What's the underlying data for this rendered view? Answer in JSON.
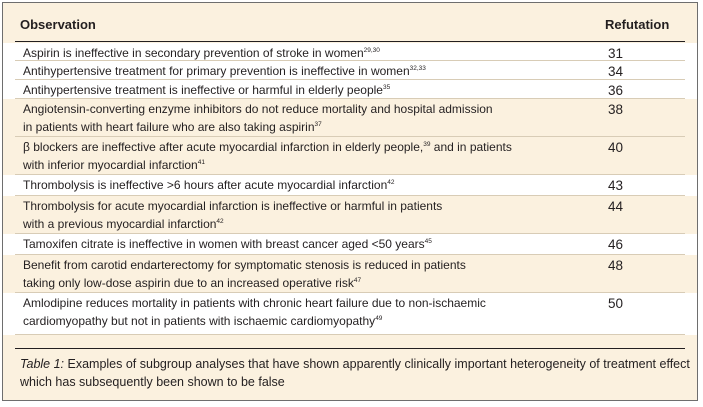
{
  "table": {
    "headers": {
      "observation": "Observation",
      "refutation": "Refutation"
    },
    "rows": [
      {
        "text": "Aspirin is ineffective in secondary prevention of stroke in women",
        "refs": "29,30",
        "refutation": "31"
      },
      {
        "text": "Antihypertensive treatment for primary prevention is ineffective in women",
        "refs": "32,33",
        "refutation": "34"
      },
      {
        "text": "Antihypertensive treatment is ineffective or harmful in elderly people",
        "refs": "35",
        "refutation": "36"
      },
      {
        "text": "Angiotensin-converting enzyme inhibitors do not reduce mortality and hospital admission",
        "text2": " in patients with heart failure who are also taking aspirin",
        "refs": "37",
        "refutation": "38"
      },
      {
        "text": "β blockers are ineffective after acute myocardial infarction in elderly people,",
        "refs": "39",
        "text2": " and in patients",
        "text3": "with inferior myocardial infarction",
        "refs2": "41",
        "refutation": "40"
      },
      {
        "text": "Thrombolysis is ineffective >6 hours after acute myocardial infarction",
        "refs": "42",
        "refutation": "43"
      },
      {
        "text": "Thrombolysis for acute myocardial infarction is ineffective or harmful in patients",
        "text2": "with a previous myocardial infarction",
        "refs": "42",
        "refutation": "44"
      },
      {
        "text": "Tamoxifen citrate is ineffective in women with breast cancer aged <50 years",
        "refs": "45",
        "refutation": "46"
      },
      {
        "text": "Benefit from carotid endarterectomy for symptomatic stenosis is reduced in patients",
        "text2": "taking only low-dose aspirin due to an increased operative risk",
        "refs": "47",
        "refutation": "48"
      },
      {
        "text": "Amlodipine reduces mortality in patients with chronic heart failure due to non-ischaemic",
        "text2": "cardiomyopathy but not in patients with ischaemic cardiomyopathy",
        "refs": "49",
        "refutation": "50"
      }
    ]
  },
  "caption": {
    "label": "Table 1:",
    "text": " Examples of subgroup analyses that have shown apparently clinically important heterogeneity of treatment effect which has subsequently been shown to be false"
  },
  "colors": {
    "shade": "#fbf1df",
    "border": "#6e6e6e",
    "rule": "#d8ccb6",
    "text": "#231f20"
  }
}
